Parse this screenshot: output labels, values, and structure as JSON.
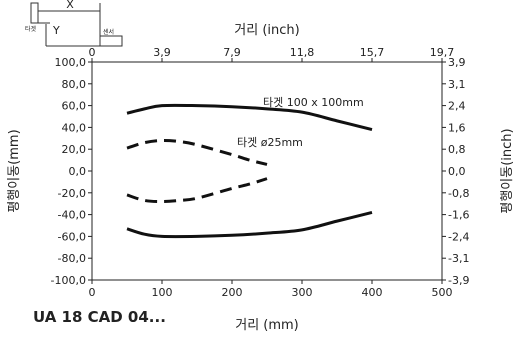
{
  "diagram": {
    "x_label": "X",
    "y_label": "Y",
    "target_label": "타겟",
    "sensor_label": "센서"
  },
  "footer": {
    "model": "UA 18 CAD 04..."
  },
  "chart_data": {
    "type": "line",
    "title": "",
    "xlabel": "거리 (mm)",
    "xlabel_top": "거리 (inch)",
    "ylabel": "평행이동(mm)",
    "ylabel_right": "평행이동(inch)",
    "xlim": [
      0,
      500
    ],
    "ylim": [
      -100,
      100
    ],
    "grid": false,
    "x_ticks": [
      "0",
      "100",
      "200",
      "300",
      "400",
      "500"
    ],
    "x_ticks_top": [
      "0",
      "3,9",
      "7,9",
      "11,8",
      "15,7",
      "19,7"
    ],
    "y_ticks": [
      "100,0",
      "80,0",
      "60,0",
      "40,0",
      "20,0",
      "0,0",
      "-20,0",
      "-40,0",
      "-60,0",
      "-80,0",
      "-100,0"
    ],
    "y_ticks_right": [
      "3,9",
      "3,1",
      "2,4",
      "1,6",
      "0,8",
      "0,0",
      "-0,8",
      "-1,6",
      "-2,4",
      "-3,1",
      "-3,9"
    ],
    "series": [
      {
        "name": "타겟 100 x 100mm",
        "style": "solid",
        "x": [
          50,
          75,
          100,
          150,
          200,
          250,
          300,
          350,
          400
        ],
        "upper": [
          53,
          57,
          60,
          60,
          59,
          57,
          54,
          46,
          38
        ],
        "lower": [
          -53,
          -58,
          -60,
          -60,
          -59,
          -57,
          -54,
          -46,
          -38
        ]
      },
      {
        "name": "타겟 ø25mm",
        "style": "dashed",
        "x": [
          50,
          75,
          100,
          125,
          150,
          200,
          225,
          250
        ],
        "upper": [
          21,
          26,
          28,
          27,
          24,
          15,
          10,
          6
        ],
        "lower": [
          -22,
          -27,
          -28,
          -27,
          -25,
          -16,
          -12,
          -7
        ]
      }
    ],
    "annotations": [
      "타겟 100 x 100mm",
      "타겟 ø25mm"
    ]
  }
}
